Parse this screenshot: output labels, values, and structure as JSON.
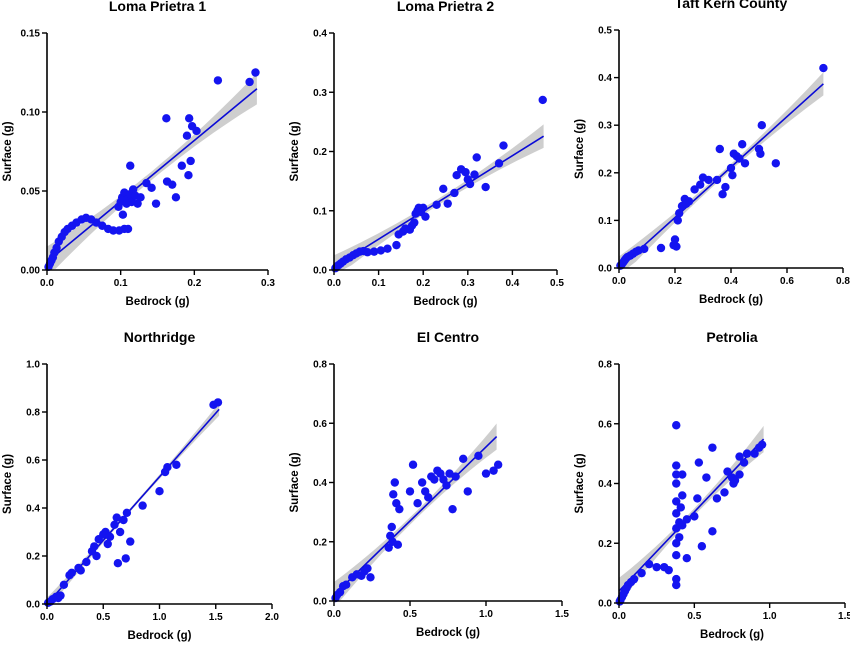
{
  "style": {
    "point_color": "#1414f0",
    "line_color": "#0a0ad6",
    "band_color": "#bdbdbd",
    "axis_color": "#000000"
  },
  "chart_data": [
    {
      "type": "scatter",
      "title": "Loma Prietra 1",
      "xlabel": "Bedrock (g)",
      "ylabel": "Surface (g)",
      "xlim": [
        0,
        0.3
      ],
      "ylim": [
        0,
        0.15
      ],
      "xticks": [
        "0.0",
        "0.1",
        "0.2",
        "0.3"
      ],
      "xtick_values": [
        0,
        0.1,
        0.2,
        0.3
      ],
      "yticks": [
        "0.00",
        "0.05",
        "0.10",
        "0.15"
      ],
      "ytick_values": [
        0,
        0.05,
        0.1,
        0.15
      ],
      "grid": false,
      "fit": {
        "slope": 0.385,
        "intercept": 0.005,
        "x_end": 0.285,
        "ci": 0.0045
      },
      "points": [
        [
          0.002,
          0.002
        ],
        [
          0.004,
          0.004
        ],
        [
          0.006,
          0.006
        ],
        [
          0.008,
          0.008
        ],
        [
          0.01,
          0.011
        ],
        [
          0.013,
          0.014
        ],
        [
          0.016,
          0.018
        ],
        [
          0.02,
          0.021
        ],
        [
          0.024,
          0.024
        ],
        [
          0.028,
          0.026
        ],
        [
          0.034,
          0.028
        ],
        [
          0.04,
          0.03
        ],
        [
          0.047,
          0.032
        ],
        [
          0.053,
          0.033
        ],
        [
          0.06,
          0.032
        ],
        [
          0.067,
          0.03
        ],
        [
          0.075,
          0.028
        ],
        [
          0.083,
          0.026
        ],
        [
          0.09,
          0.025
        ],
        [
          0.098,
          0.025
        ],
        [
          0.105,
          0.026
        ],
        [
          0.11,
          0.026
        ],
        [
          0.097,
          0.04
        ],
        [
          0.1,
          0.043
        ],
        [
          0.102,
          0.046
        ],
        [
          0.105,
          0.049
        ],
        [
          0.108,
          0.042
        ],
        [
          0.11,
          0.045
        ],
        [
          0.113,
          0.048
        ],
        [
          0.115,
          0.043
        ],
        [
          0.117,
          0.051
        ],
        [
          0.12,
          0.047
        ],
        [
          0.123,
          0.042
        ],
        [
          0.103,
          0.035
        ],
        [
          0.113,
          0.066
        ],
        [
          0.127,
          0.046
        ],
        [
          0.135,
          0.055
        ],
        [
          0.142,
          0.052
        ],
        [
          0.148,
          0.042
        ],
        [
          0.162,
          0.096
        ],
        [
          0.163,
          0.056
        ],
        [
          0.17,
          0.054
        ],
        [
          0.175,
          0.046
        ],
        [
          0.183,
          0.066
        ],
        [
          0.192,
          0.06
        ],
        [
          0.19,
          0.085
        ],
        [
          0.193,
          0.096
        ],
        [
          0.195,
          0.069
        ],
        [
          0.197,
          0.091
        ],
        [
          0.203,
          0.088
        ],
        [
          0.232,
          0.12
        ],
        [
          0.275,
          0.119
        ],
        [
          0.283,
          0.125
        ]
      ]
    },
    {
      "type": "scatter",
      "title": "Loma Prietra 2",
      "xlabel": "Bedrock (g)",
      "ylabel": "Surface (g)",
      "xlim": [
        0,
        0.5
      ],
      "ylim": [
        0,
        0.4
      ],
      "xticks": [
        "0.0",
        "0.1",
        "0.2",
        "0.3",
        "0.4",
        "0.5"
      ],
      "xtick_values": [
        0,
        0.1,
        0.2,
        0.3,
        0.4,
        0.5
      ],
      "yticks": [
        "0.0",
        "0.1",
        "0.2",
        "0.3",
        "0.4"
      ],
      "ytick_values": [
        0,
        0.1,
        0.2,
        0.3,
        0.4
      ],
      "grid": false,
      "fit": {
        "slope": 0.47,
        "intercept": 0.005,
        "x_end": 0.47,
        "ci": 0.009
      },
      "points": [
        [
          0.003,
          0.003
        ],
        [
          0.006,
          0.006
        ],
        [
          0.01,
          0.008
        ],
        [
          0.015,
          0.011
        ],
        [
          0.02,
          0.014
        ],
        [
          0.027,
          0.018
        ],
        [
          0.035,
          0.021
        ],
        [
          0.043,
          0.025
        ],
        [
          0.05,
          0.028
        ],
        [
          0.058,
          0.031
        ],
        [
          0.066,
          0.032
        ],
        [
          0.075,
          0.03
        ],
        [
          0.09,
          0.031
        ],
        [
          0.105,
          0.033
        ],
        [
          0.12,
          0.036
        ],
        [
          0.14,
          0.042
        ],
        [
          0.145,
          0.06
        ],
        [
          0.155,
          0.065
        ],
        [
          0.16,
          0.07
        ],
        [
          0.17,
          0.068
        ],
        [
          0.175,
          0.075
        ],
        [
          0.18,
          0.08
        ],
        [
          0.183,
          0.095
        ],
        [
          0.187,
          0.1
        ],
        [
          0.19,
          0.105
        ],
        [
          0.195,
          0.098
        ],
        [
          0.2,
          0.105
        ],
        [
          0.205,
          0.09
        ],
        [
          0.23,
          0.11
        ],
        [
          0.245,
          0.137
        ],
        [
          0.255,
          0.112
        ],
        [
          0.27,
          0.13
        ],
        [
          0.275,
          0.16
        ],
        [
          0.285,
          0.17
        ],
        [
          0.295,
          0.165
        ],
        [
          0.3,
          0.153
        ],
        [
          0.305,
          0.145
        ],
        [
          0.315,
          0.161
        ],
        [
          0.32,
          0.19
        ],
        [
          0.34,
          0.14
        ],
        [
          0.37,
          0.18
        ],
        [
          0.38,
          0.21
        ],
        [
          0.468,
          0.287
        ]
      ]
    },
    {
      "type": "scatter",
      "title": "Taft Kern County",
      "xlabel": "Bedrock (g)",
      "ylabel": "Surface (g)",
      "xlim": [
        0,
        0.8
      ],
      "ylim": [
        0,
        0.5
      ],
      "xticks": [
        "0.0",
        "0.2",
        "0.4",
        "0.6",
        "0.8"
      ],
      "xtick_values": [
        0,
        0.2,
        0.4,
        0.6,
        0.8
      ],
      "yticks": [
        "0.0",
        "0.1",
        "0.2",
        "0.3",
        "0.4",
        "0.5"
      ],
      "ytick_values": [
        0,
        0.1,
        0.2,
        0.3,
        0.4,
        0.5
      ],
      "grid": false,
      "fit": {
        "slope": 0.53,
        "intercept": 0.0,
        "x_end": 0.73,
        "ci": 0.011
      },
      "points": [
        [
          0.005,
          0.005
        ],
        [
          0.01,
          0.008
        ],
        [
          0.015,
          0.012
        ],
        [
          0.02,
          0.016
        ],
        [
          0.025,
          0.02
        ],
        [
          0.03,
          0.023
        ],
        [
          0.04,
          0.026
        ],
        [
          0.05,
          0.03
        ],
        [
          0.06,
          0.034
        ],
        [
          0.07,
          0.037
        ],
        [
          0.09,
          0.04
        ],
        [
          0.15,
          0.042
        ],
        [
          0.195,
          0.048
        ],
        [
          0.2,
          0.06
        ],
        [
          0.205,
          0.045
        ],
        [
          0.21,
          0.1
        ],
        [
          0.215,
          0.115
        ],
        [
          0.225,
          0.13
        ],
        [
          0.235,
          0.145
        ],
        [
          0.24,
          0.135
        ],
        [
          0.25,
          0.14
        ],
        [
          0.27,
          0.165
        ],
        [
          0.29,
          0.175
        ],
        [
          0.3,
          0.19
        ],
        [
          0.32,
          0.185
        ],
        [
          0.35,
          0.185
        ],
        [
          0.36,
          0.25
        ],
        [
          0.37,
          0.155
        ],
        [
          0.38,
          0.17
        ],
        [
          0.4,
          0.21
        ],
        [
          0.405,
          0.195
        ],
        [
          0.41,
          0.24
        ],
        [
          0.42,
          0.235
        ],
        [
          0.43,
          0.23
        ],
        [
          0.44,
          0.26
        ],
        [
          0.45,
          0.22
        ],
        [
          0.5,
          0.25
        ],
        [
          0.505,
          0.24
        ],
        [
          0.51,
          0.3
        ],
        [
          0.56,
          0.22
        ],
        [
          0.73,
          0.42
        ]
      ]
    },
    {
      "type": "scatter",
      "title": "Northridge",
      "xlabel": "Bedrock (g)",
      "ylabel": "Surface (g)",
      "xlim": [
        0,
        2.0
      ],
      "ylim": [
        0,
        1.0
      ],
      "xticks": [
        "0.0",
        "0.5",
        "1.0",
        "1.5",
        "2.0"
      ],
      "xtick_values": [
        0,
        0.5,
        1.0,
        1.5,
        2.0
      ],
      "yticks": [
        "0.0",
        "0.2",
        "0.4",
        "0.6",
        "0.8",
        "1.0"
      ],
      "ytick_values": [
        0,
        0.2,
        0.4,
        0.6,
        0.8,
        1.0
      ],
      "grid": false,
      "fit": {
        "slope": 0.53,
        "intercept": 0.0,
        "x_end": 1.53,
        "ci": 0.012
      },
      "points": [
        [
          0.01,
          0.005
        ],
        [
          0.03,
          0.01
        ],
        [
          0.05,
          0.02
        ],
        [
          0.08,
          0.03
        ],
        [
          0.1,
          0.025
        ],
        [
          0.12,
          0.035
        ],
        [
          0.15,
          0.08
        ],
        [
          0.2,
          0.12
        ],
        [
          0.22,
          0.13
        ],
        [
          0.28,
          0.15
        ],
        [
          0.3,
          0.14
        ],
        [
          0.35,
          0.175
        ],
        [
          0.4,
          0.22
        ],
        [
          0.42,
          0.24
        ],
        [
          0.44,
          0.2
        ],
        [
          0.46,
          0.27
        ],
        [
          0.5,
          0.29
        ],
        [
          0.52,
          0.3
        ],
        [
          0.54,
          0.25
        ],
        [
          0.56,
          0.28
        ],
        [
          0.6,
          0.33
        ],
        [
          0.62,
          0.36
        ],
        [
          0.63,
          0.17
        ],
        [
          0.65,
          0.3
        ],
        [
          0.68,
          0.35
        ],
        [
          0.7,
          0.19
        ],
        [
          0.71,
          0.38
        ],
        [
          0.74,
          0.26
        ],
        [
          0.85,
          0.41
        ],
        [
          1.0,
          0.47
        ],
        [
          1.05,
          0.55
        ],
        [
          1.07,
          0.57
        ],
        [
          1.15,
          0.58
        ],
        [
          1.48,
          0.83
        ],
        [
          1.52,
          0.84
        ]
      ]
    },
    {
      "type": "scatter",
      "title": "El Centro",
      "xlabel": "Bedrock (g)",
      "ylabel": "Surface (g)",
      "xlim": [
        0,
        1.5
      ],
      "ylim": [
        0,
        0.8
      ],
      "xticks": [
        "0.0",
        "0.5",
        "1.0",
        "1.5"
      ],
      "xtick_values": [
        0,
        0.5,
        1.0,
        1.5
      ],
      "yticks": [
        "0.0",
        "0.2",
        "0.4",
        "0.6",
        "0.8"
      ],
      "ytick_values": [
        0,
        0.2,
        0.4,
        0.6,
        0.8
      ],
      "grid": false,
      "fit": {
        "slope": 0.5,
        "intercept": 0.02,
        "x_end": 1.07,
        "ci": 0.02
      },
      "points": [
        [
          0.01,
          0.01
        ],
        [
          0.02,
          0.02
        ],
        [
          0.04,
          0.03
        ],
        [
          0.06,
          0.05
        ],
        [
          0.08,
          0.055
        ],
        [
          0.12,
          0.08
        ],
        [
          0.15,
          0.09
        ],
        [
          0.18,
          0.085
        ],
        [
          0.2,
          0.1
        ],
        [
          0.22,
          0.11
        ],
        [
          0.24,
          0.08
        ],
        [
          0.36,
          0.18
        ],
        [
          0.37,
          0.22
        ],
        [
          0.38,
          0.25
        ],
        [
          0.385,
          0.2
        ],
        [
          0.39,
          0.36
        ],
        [
          0.4,
          0.4
        ],
        [
          0.41,
          0.33
        ],
        [
          0.42,
          0.19
        ],
        [
          0.43,
          0.31
        ],
        [
          0.5,
          0.37
        ],
        [
          0.52,
          0.46
        ],
        [
          0.55,
          0.33
        ],
        [
          0.58,
          0.4
        ],
        [
          0.6,
          0.37
        ],
        [
          0.62,
          0.35
        ],
        [
          0.64,
          0.42
        ],
        [
          0.66,
          0.41
        ],
        [
          0.68,
          0.44
        ],
        [
          0.7,
          0.43
        ],
        [
          0.72,
          0.41
        ],
        [
          0.74,
          0.39
        ],
        [
          0.76,
          0.43
        ],
        [
          0.78,
          0.31
        ],
        [
          0.8,
          0.42
        ],
        [
          0.85,
          0.48
        ],
        [
          0.88,
          0.37
        ],
        [
          0.95,
          0.49
        ],
        [
          1.0,
          0.43
        ],
        [
          1.05,
          0.44
        ],
        [
          1.08,
          0.46
        ]
      ]
    },
    {
      "type": "scatter",
      "title": "Petrolia",
      "xlabel": "Bedrock (g)",
      "ylabel": "Surface (g)",
      "xlim": [
        0,
        1.5
      ],
      "ylim": [
        0,
        0.8
      ],
      "xticks": [
        "0.0",
        "0.5",
        "1.0",
        "1.5"
      ],
      "xtick_values": [
        0,
        0.5,
        1.0,
        1.5
      ],
      "yticks": [
        "0.0",
        "0.2",
        "0.4",
        "0.6",
        "0.8"
      ],
      "ytick_values": [
        0,
        0.2,
        0.4,
        0.6,
        0.8
      ],
      "grid": false,
      "fit": {
        "slope": 0.53,
        "intercept": 0.04,
        "x_end": 0.96,
        "ci": 0.02
      },
      "points": [
        [
          0.005,
          0.005
        ],
        [
          0.01,
          0.01
        ],
        [
          0.02,
          0.02
        ],
        [
          0.03,
          0.03
        ],
        [
          0.04,
          0.04
        ],
        [
          0.05,
          0.05
        ],
        [
          0.06,
          0.06
        ],
        [
          0.08,
          0.07
        ],
        [
          0.1,
          0.08
        ],
        [
          0.15,
          0.1
        ],
        [
          0.2,
          0.13
        ],
        [
          0.25,
          0.12
        ],
        [
          0.3,
          0.12
        ],
        [
          0.33,
          0.11
        ],
        [
          0.38,
          0.06
        ],
        [
          0.38,
          0.08
        ],
        [
          0.38,
          0.16
        ],
        [
          0.38,
          0.2
        ],
        [
          0.38,
          0.25
        ],
        [
          0.38,
          0.3
        ],
        [
          0.38,
          0.34
        ],
        [
          0.38,
          0.4
        ],
        [
          0.38,
          0.43
        ],
        [
          0.38,
          0.46
        ],
        [
          0.38,
          0.595
        ],
        [
          0.4,
          0.22
        ],
        [
          0.4,
          0.27
        ],
        [
          0.41,
          0.32
        ],
        [
          0.42,
          0.26
        ],
        [
          0.42,
          0.36
        ],
        [
          0.42,
          0.43
        ],
        [
          0.45,
          0.15
        ],
        [
          0.45,
          0.28
        ],
        [
          0.5,
          0.29
        ],
        [
          0.52,
          0.35
        ],
        [
          0.53,
          0.47
        ],
        [
          0.55,
          0.19
        ],
        [
          0.58,
          0.42
        ],
        [
          0.62,
          0.52
        ],
        [
          0.62,
          0.24
        ],
        [
          0.65,
          0.35
        ],
        [
          0.7,
          0.37
        ],
        [
          0.72,
          0.44
        ],
        [
          0.75,
          0.42
        ],
        [
          0.76,
          0.4
        ],
        [
          0.77,
          0.41
        ],
        [
          0.8,
          0.43
        ],
        [
          0.8,
          0.49
        ],
        [
          0.83,
          0.47
        ],
        [
          0.85,
          0.5
        ],
        [
          0.9,
          0.5
        ],
        [
          0.93,
          0.52
        ],
        [
          0.95,
          0.53
        ]
      ]
    }
  ]
}
